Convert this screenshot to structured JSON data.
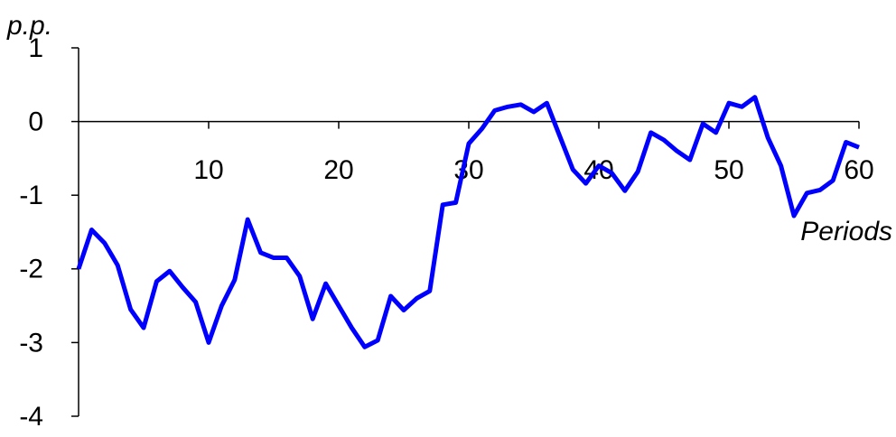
{
  "chart_data": {
    "type": "line",
    "y_label": "p.p.",
    "x_label": "Periods",
    "x": [
      0,
      1,
      2,
      3,
      4,
      5,
      6,
      7,
      8,
      9,
      10,
      11,
      12,
      13,
      14,
      15,
      16,
      17,
      18,
      19,
      20,
      21,
      22,
      23,
      24,
      25,
      26,
      27,
      28,
      29,
      30,
      31,
      32,
      33,
      34,
      35,
      36,
      37,
      38,
      39,
      40,
      41,
      42,
      43,
      44,
      45,
      46,
      47,
      48,
      49,
      50,
      51,
      52,
      53,
      54,
      55,
      56,
      57,
      58,
      59,
      60
    ],
    "series": [
      {
        "color": "#0000ff",
        "values": [
          -2.0,
          -1.47,
          -1.65,
          -1.95,
          -2.55,
          -2.8,
          -2.17,
          -2.03,
          -2.25,
          -2.45,
          -3.0,
          -2.5,
          -2.15,
          -1.33,
          -1.78,
          -1.85,
          -1.85,
          -2.1,
          -2.68,
          -2.2,
          -2.5,
          -2.8,
          -3.06,
          -2.97,
          -2.37,
          -2.56,
          -2.4,
          -2.3,
          -1.13,
          -1.1,
          -0.3,
          -0.1,
          0.15,
          0.2,
          0.23,
          0.13,
          0.25,
          -0.2,
          -0.65,
          -0.84,
          -0.6,
          -0.7,
          -0.94,
          -0.68,
          -0.15,
          -0.25,
          -0.4,
          -0.52,
          -0.03,
          -0.15,
          0.25,
          0.2,
          0.33,
          -0.22,
          -0.6,
          -1.28,
          -0.97,
          -0.93,
          -0.8,
          -0.28,
          -0.35
        ]
      }
    ],
    "xlim": [
      0,
      60
    ],
    "xticks": [
      10,
      20,
      30,
      40,
      50,
      60
    ],
    "ylim": [
      -4,
      1
    ],
    "yticks": [
      1,
      0,
      -1,
      -2,
      -3,
      -4
    ]
  }
}
